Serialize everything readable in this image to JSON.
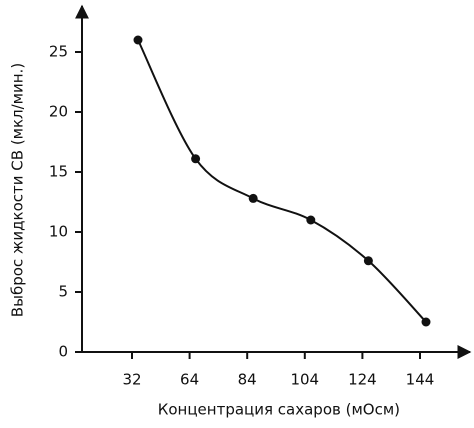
{
  "chart_data": {
    "type": "line",
    "x_label": "Концентрация сахаров (мОсм)",
    "y_label": "Выброс жидкости СВ (мкл/мин.)",
    "categories": [
      "32",
      "64",
      "84",
      "104",
      "124",
      "144"
    ],
    "values": [
      26,
      16.1,
      12.8,
      11,
      7.6,
      2.5
    ],
    "color": "#111111",
    "ylim": [
      0,
      29
    ],
    "yticks": [
      0,
      5,
      10,
      15,
      20,
      25
    ]
  }
}
